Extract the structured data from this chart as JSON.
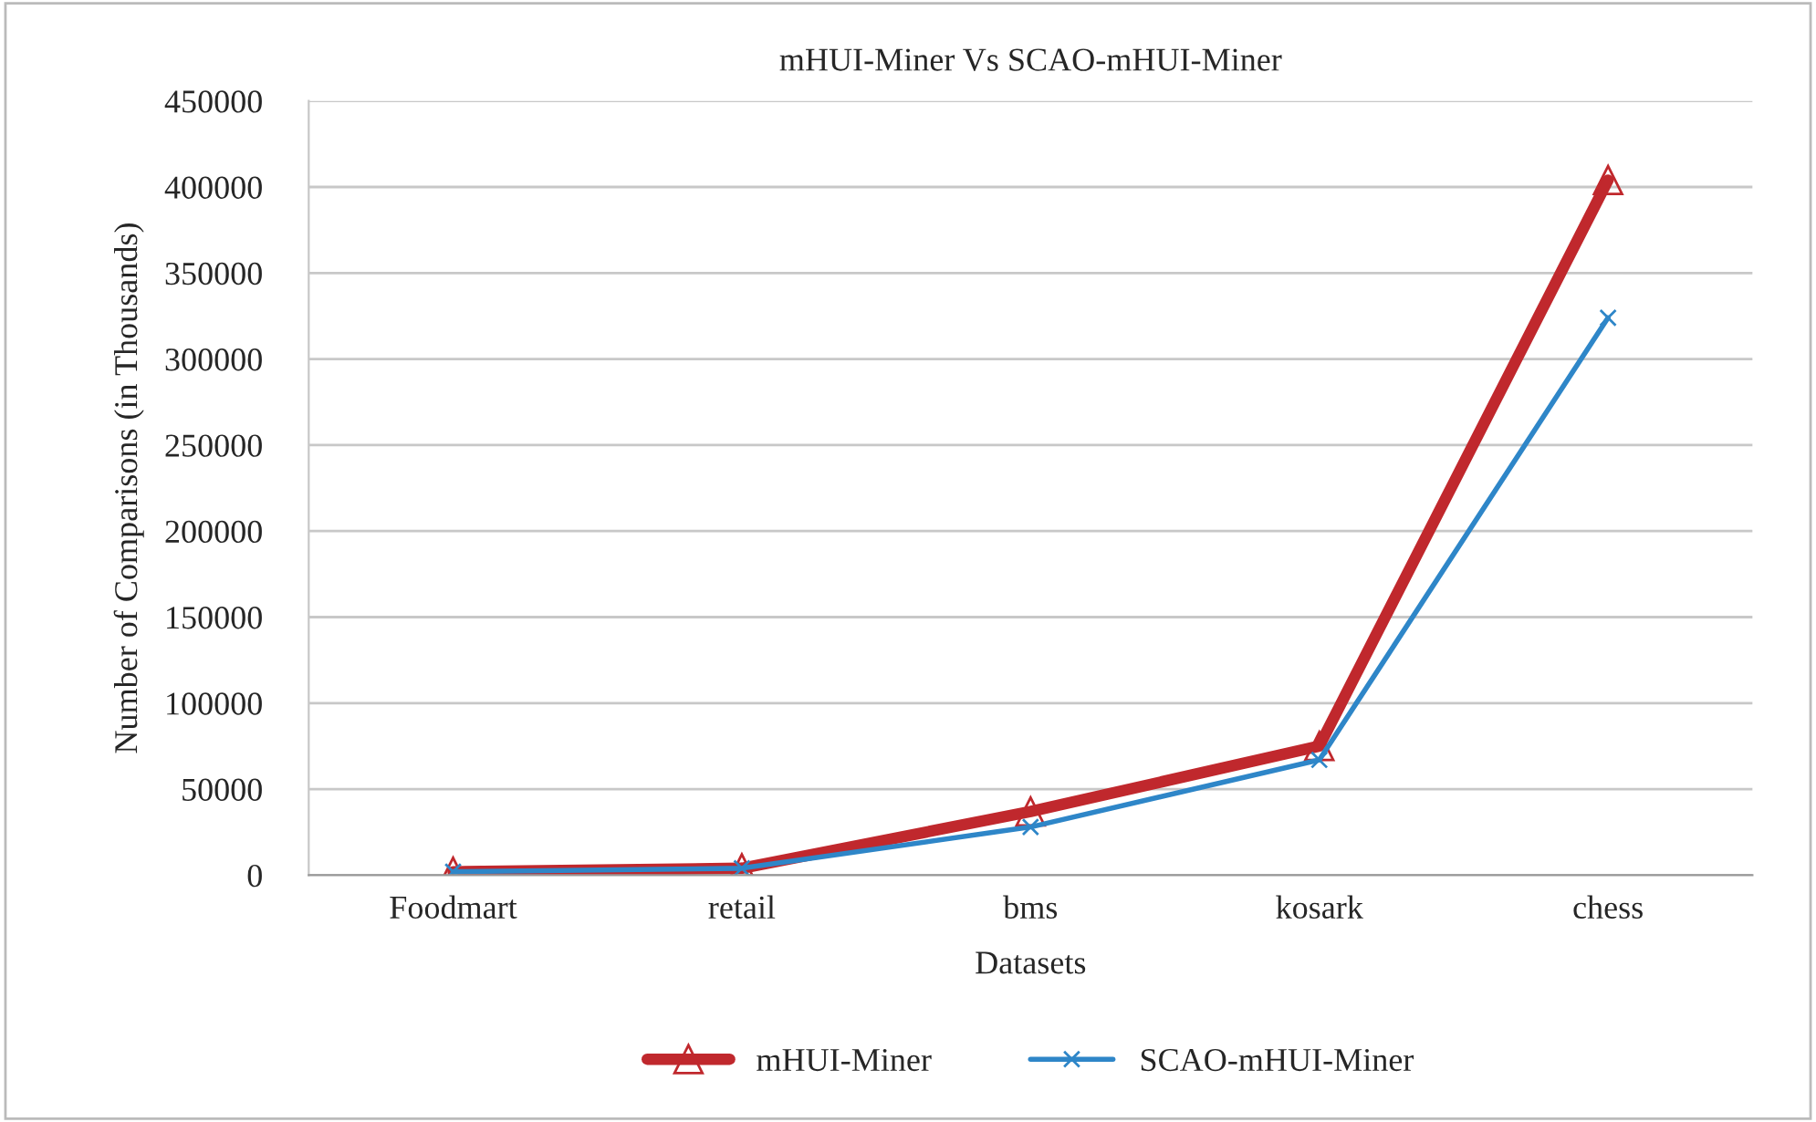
{
  "chart_data": {
    "type": "line",
    "title": "mHUI-Miner Vs SCAO-mHUI-Miner",
    "xlabel": "Datasets",
    "ylabel": "Number of Comparisons (in Thousands)",
    "categories": [
      "Foodmart",
      "retail",
      "bms",
      "kosark",
      "chess"
    ],
    "series": [
      {
        "name": "mHUI-Miner",
        "color": "#c0282d",
        "marker": "triangle",
        "values": [
          2000,
          4000,
          37000,
          75000,
          404000
        ]
      },
      {
        "name": "SCAO-mHUI-Miner",
        "color": "#2e86c8",
        "marker": "cross",
        "values": [
          2000,
          4000,
          28000,
          67000,
          324000
        ]
      }
    ],
    "ylim": [
      0,
      450000
    ],
    "yticks": [
      0,
      50000,
      100000,
      150000,
      200000,
      250000,
      300000,
      350000,
      400000,
      450000
    ],
    "grid": "y",
    "legend": "bottom",
    "line_style": "solid"
  }
}
